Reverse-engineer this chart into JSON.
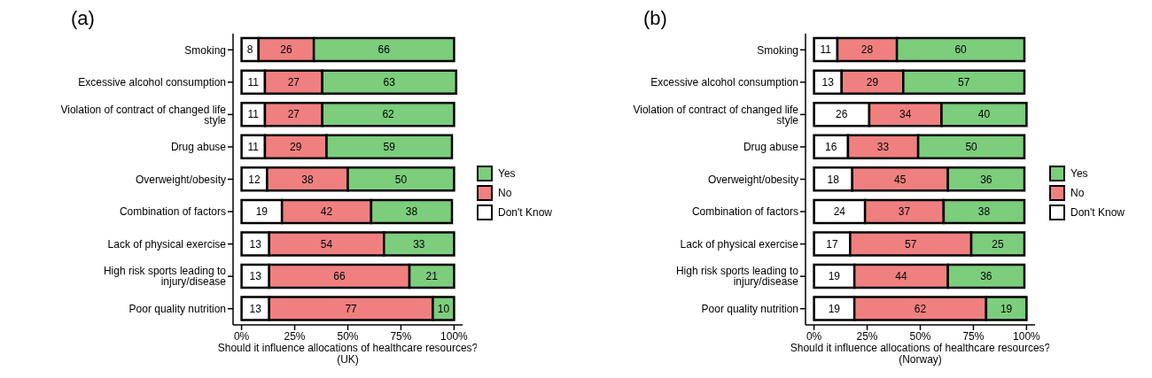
{
  "chart_data": [
    {
      "type": "bar",
      "title": "(a)",
      "orientation": "horizontal",
      "stacked": true,
      "data_labels": true,
      "legend": "right",
      "grid": false,
      "xlabel": "Should it influence allocations of healthcare resources?\n(UK)",
      "categories": [
        "Smoking",
        "Excessive alcohol consumption",
        "Violation of contract of changed life style",
        "Drug abuse",
        "Overweight/obesity",
        "Combination of factors",
        "Lack of physical exercise",
        "High risk sports leading to injury/disease",
        "Poor quality nutrition"
      ],
      "xlim": [
        -4,
        104
      ],
      "xticks": [
        {
          "value": 0,
          "label": "0%"
        },
        {
          "value": 25,
          "label": "25%"
        },
        {
          "value": 50,
          "label": "50%"
        },
        {
          "value": 75,
          "label": "75%"
        },
        {
          "value": 100,
          "label": "100%"
        }
      ],
      "series": [
        {
          "name": "Don't Know",
          "color": "#ffffff",
          "values": [
            8,
            11,
            11,
            11,
            12,
            19,
            13,
            13,
            13
          ]
        },
        {
          "name": "No",
          "color": "#f08080",
          "values": [
            26,
            27,
            27,
            29,
            38,
            42,
            54,
            66,
            77
          ]
        },
        {
          "name": "Yes",
          "color": "#7ccd7c",
          "values": [
            66,
            63,
            62,
            59,
            50,
            38,
            33,
            21,
            10
          ]
        }
      ]
    },
    {
      "type": "bar",
      "title": "(b)",
      "orientation": "horizontal",
      "stacked": true,
      "data_labels": true,
      "legend": "right",
      "grid": false,
      "xlabel": "Should it influence allocations of healthcare resources?\n(Norway)",
      "categories": [
        "Smoking",
        "Excessive alcohol consumption",
        "Violation of contract of changed life style",
        "Drug abuse",
        "Overweight/obesity",
        "Combination of factors",
        "Lack of physical exercise",
        "High risk sports leading to injury/disease",
        "Poor quality nutrition"
      ],
      "xlim": [
        -4,
        104
      ],
      "xticks": [
        {
          "value": 0,
          "label": "0%"
        },
        {
          "value": 25,
          "label": "25%"
        },
        {
          "value": 50,
          "label": "50%"
        },
        {
          "value": 75,
          "label": "75%"
        },
        {
          "value": 100,
          "label": "100%"
        }
      ],
      "series": [
        {
          "name": "Don't Know",
          "color": "#ffffff",
          "values": [
            11,
            13,
            26,
            16,
            18,
            24,
            17,
            19,
            19
          ]
        },
        {
          "name": "No",
          "color": "#f08080",
          "values": [
            28,
            29,
            34,
            33,
            45,
            37,
            57,
            44,
            62
          ]
        },
        {
          "name": "Yes",
          "color": "#7ccd7c",
          "values": [
            60,
            57,
            40,
            50,
            36,
            38,
            25,
            36,
            19
          ]
        }
      ]
    }
  ]
}
